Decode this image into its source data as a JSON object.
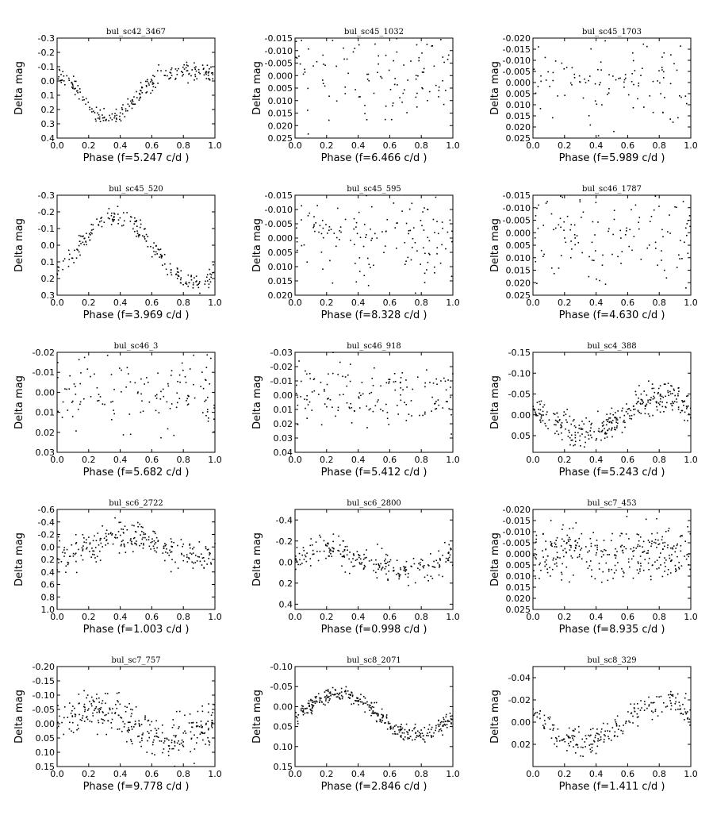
{
  "chart_data": [
    {
      "type": "scatter",
      "title": "bul_sc42_3467",
      "xlabel": "Phase (f=5.247 c/d )",
      "ylabel": "Delta mag",
      "xlim": [
        0.0,
        1.0
      ],
      "ylim_top": -0.3,
      "ylim_bottom": 0.4,
      "yticks": [
        "-0.3",
        "-0.2",
        "-0.1",
        "0.0",
        "0.1",
        "0.2",
        "0.3",
        "0.4"
      ],
      "xticks": [
        "0.0",
        "0.2",
        "0.4",
        "0.6",
        "0.8",
        "1.0"
      ],
      "shape": "dip",
      "curve": {
        "base": -0.02,
        "amp": 0.21,
        "center": 0.33,
        "width": 0.13,
        "noise": 0.03
      },
      "n_points": 220
    },
    {
      "type": "scatter",
      "title": "bul_sc45_1032",
      "xlabel": "Phase (f=6.466 c/d )",
      "ylabel": "Delta mag",
      "xlim": [
        0.0,
        1.0
      ],
      "ylim_top": -0.015,
      "ylim_bottom": 0.025,
      "yticks": [
        "-0.015",
        "-0.010",
        "-0.005",
        "0.000",
        "0.005",
        "0.010",
        "0.015",
        "0.020",
        "0.025"
      ],
      "xticks": [
        "0.0",
        "0.2",
        "0.4",
        "0.6",
        "0.8",
        "1.0"
      ],
      "shape": "flat",
      "curve": {
        "base": 0.0,
        "amp": 0.0,
        "noise": 0.008
      },
      "n_points": 110
    },
    {
      "type": "scatter",
      "title": "bul_sc45_1703",
      "xlabel": "Phase (f=5.989 c/d )",
      "ylabel": "Delta mag",
      "xlim": [
        0.0,
        1.0
      ],
      "ylim_top": -0.02,
      "ylim_bottom": 0.025,
      "yticks": [
        "-0.020",
        "-0.015",
        "-0.010",
        "-0.005",
        "0.000",
        "0.005",
        "0.010",
        "0.015",
        "0.020",
        "0.025"
      ],
      "xticks": [
        "0.0",
        "0.2",
        "0.4",
        "0.6",
        "0.8",
        "1.0"
      ],
      "shape": "flat",
      "curve": {
        "base": 0.0,
        "amp": 0.0,
        "noise": 0.01
      },
      "n_points": 110
    },
    {
      "type": "scatter",
      "title": "bul_sc45_520",
      "xlabel": "Phase (f=3.969 c/d )",
      "ylabel": "Delta mag",
      "xlim": [
        0.0,
        1.0
      ],
      "ylim_top": -0.3,
      "ylim_bottom": 0.3,
      "yticks": [
        "-0.3",
        "-0.2",
        "-0.1",
        "0.0",
        "0.1",
        "0.2",
        "0.3"
      ],
      "xticks": [
        "0.0",
        "0.2",
        "0.4",
        "0.6",
        "0.8",
        "1.0"
      ],
      "shape": "sine",
      "curve": {
        "base": 0.03,
        "amp": 0.2,
        "phase": 0.37,
        "noise": 0.03
      },
      "n_points": 200
    },
    {
      "type": "scatter",
      "title": "bul_sc45_595",
      "xlabel": "Phase (f=8.328 c/d )",
      "ylabel": "Delta mag",
      "xlim": [
        0.0,
        1.0
      ],
      "ylim_top": -0.015,
      "ylim_bottom": 0.02,
      "yticks": [
        "-0.015",
        "-0.010",
        "-0.005",
        "0.000",
        "0.005",
        "0.010",
        "0.015",
        "0.020"
      ],
      "xticks": [
        "0.0",
        "0.2",
        "0.4",
        "0.6",
        "0.8",
        "1.0"
      ],
      "shape": "flat",
      "curve": {
        "base": 0.001,
        "amp": 0.0,
        "noise": 0.008
      },
      "n_points": 140
    },
    {
      "type": "scatter",
      "title": "bul_sc46_1787",
      "xlabel": "Phase (f=4.630 c/d )",
      "ylabel": "Delta mag",
      "xlim": [
        0.0,
        1.0
      ],
      "ylim_top": -0.015,
      "ylim_bottom": 0.025,
      "yticks": [
        "-0.015",
        "-0.010",
        "-0.005",
        "0.000",
        "0.005",
        "0.010",
        "0.015",
        "0.020",
        "0.025"
      ],
      "xticks": [
        "0.0",
        "0.2",
        "0.4",
        "0.6",
        "0.8",
        "1.0"
      ],
      "shape": "flat",
      "curve": {
        "base": 0.0,
        "amp": 0.0,
        "noise": 0.009
      },
      "n_points": 130
    },
    {
      "type": "scatter",
      "title": "bul_sc46_3",
      "xlabel": "Phase (f=5.682 c/d )",
      "ylabel": "Delta mag",
      "xlim": [
        0.0,
        1.0
      ],
      "ylim_top": -0.02,
      "ylim_bottom": 0.03,
      "yticks": [
        "-0.02",
        "-0.01",
        "0.00",
        "0.01",
        "0.02",
        "0.03"
      ],
      "xticks": [
        "0.0",
        "0.2",
        "0.4",
        "0.6",
        "0.8",
        "1.0"
      ],
      "shape": "flat",
      "curve": {
        "base": 0.001,
        "amp": 0.0,
        "noise": 0.009
      },
      "n_points": 130
    },
    {
      "type": "scatter",
      "title": "bul_sc46_918",
      "xlabel": "Phase (f=5.412 c/d )",
      "ylabel": "Delta mag",
      "xlim": [
        0.0,
        1.0
      ],
      "ylim_top": -0.03,
      "ylim_bottom": 0.04,
      "yticks": [
        "-0.03",
        "-0.02",
        "-0.01",
        "0.00",
        "0.01",
        "0.02",
        "0.03",
        "0.04"
      ],
      "xticks": [
        "0.0",
        "0.2",
        "0.4",
        "0.6",
        "0.8",
        "1.0"
      ],
      "shape": "flat",
      "curve": {
        "base": 0.0,
        "amp": 0.0,
        "noise": 0.01
      },
      "n_points": 150
    },
    {
      "type": "scatter",
      "title": "bul_sc4_388",
      "xlabel": "Phase (f=5.243 c/d )",
      "ylabel": "Delta mag",
      "xlim": [
        0.0,
        1.0
      ],
      "ylim_top": -0.15,
      "ylim_bottom": 0.09,
      "yticks": [
        "-0.15",
        "-0.10",
        "-0.05",
        "0.00",
        "0.05"
      ],
      "xticks": [
        "0.0",
        "0.2",
        "0.4",
        "0.6",
        "0.8",
        "1.0"
      ],
      "shape": "sine",
      "curve": {
        "base": 0.0,
        "amp": 0.04,
        "phase": 0.82,
        "noise": 0.018
      },
      "n_points": 320
    },
    {
      "type": "scatter",
      "title": "bul_sc6_2722",
      "xlabel": "Phase (f=1.003 c/d )",
      "ylabel": "Delta mag",
      "xlim": [
        0.0,
        1.0
      ],
      "ylim_top": -0.6,
      "ylim_bottom": 1.0,
      "yticks": [
        "-0.6",
        "-0.4",
        "-0.2",
        "0.0",
        "0.2",
        "0.4",
        "0.6",
        "0.8",
        "1.0"
      ],
      "xticks": [
        "0.0",
        "0.2",
        "0.4",
        "0.6",
        "0.8",
        "1.0"
      ],
      "shape": "sine",
      "curve": {
        "base": 0.0,
        "amp": 0.15,
        "phase": 0.42,
        "noise": 0.13
      },
      "n_points": 240
    },
    {
      "type": "scatter",
      "title": "bul_sc6_2800",
      "xlabel": "Phase (f=0.998 c/d )",
      "ylabel": "Delta mag",
      "xlim": [
        0.0,
        1.0
      ],
      "ylim_top": -0.5,
      "ylim_bottom": 0.45,
      "yticks": [
        "-0.4",
        "-0.2",
        "0.0",
        "0.2",
        "0.4"
      ],
      "xticks": [
        "0.0",
        "0.2",
        "0.4",
        "0.6",
        "0.8",
        "1.0"
      ],
      "shape": "sine",
      "curve": {
        "base": 0.0,
        "amp": 0.1,
        "phase": 0.2,
        "noise": 0.07
      },
      "n_points": 230
    },
    {
      "type": "scatter",
      "title": "bul_sc7_453",
      "xlabel": "Phase (f=8.935 c/d )",
      "ylabel": "Delta mag",
      "xlim": [
        0.0,
        1.0
      ],
      "ylim_top": -0.02,
      "ylim_bottom": 0.025,
      "yticks": [
        "-0.020",
        "-0.015",
        "-0.010",
        "-0.005",
        "0.000",
        "0.005",
        "0.010",
        "0.015",
        "0.020",
        "0.025"
      ],
      "xticks": [
        "0.0",
        "0.2",
        "0.4",
        "0.6",
        "0.8",
        "1.0"
      ],
      "shape": "flat",
      "curve": {
        "base": 0.0,
        "amp": 0.0,
        "noise": 0.006
      },
      "n_points": 300
    },
    {
      "type": "scatter",
      "title": "bul_sc7_757",
      "xlabel": "Phase (f=9.778 c/d )",
      "ylabel": "Delta mag",
      "xlim": [
        0.0,
        1.0
      ],
      "ylim_top": -0.2,
      "ylim_bottom": 0.15,
      "yticks": [
        "-0.20",
        "-0.15",
        "-0.10",
        "-0.05",
        "0.00",
        "0.05",
        "0.10",
        "0.15"
      ],
      "xticks": [
        "0.0",
        "0.2",
        "0.4",
        "0.6",
        "0.8",
        "1.0"
      ],
      "shape": "sine",
      "curve": {
        "base": 0.0,
        "amp": 0.05,
        "phase": 0.22,
        "noise": 0.035
      },
      "n_points": 300
    },
    {
      "type": "scatter",
      "title": "bul_sc8_2071",
      "xlabel": "Phase (f=2.846 c/d )",
      "ylabel": "Delta mag",
      "xlim": [
        0.0,
        1.0
      ],
      "ylim_top": -0.1,
      "ylim_bottom": 0.15,
      "yticks": [
        "-0.10",
        "-0.05",
        "0.00",
        "0.05",
        "0.10",
        "0.15"
      ],
      "xticks": [
        "0.0",
        "0.2",
        "0.4",
        "0.6",
        "0.8",
        "1.0"
      ],
      "shape": "sine",
      "curve": {
        "base": 0.02,
        "amp": 0.05,
        "phase": 0.27,
        "noise": 0.01
      },
      "n_points": 320
    },
    {
      "type": "scatter",
      "title": "bul_sc8_329",
      "xlabel": "Phase (f=1.411 c/d )",
      "ylabel": "Delta mag",
      "xlim": [
        0.0,
        1.0
      ],
      "ylim_top": -0.05,
      "ylim_bottom": 0.04,
      "yticks": [
        "-0.04",
        "-0.02",
        "0.00",
        "0.02"
      ],
      "xticks": [
        "0.0",
        "0.2",
        "0.4",
        "0.6",
        "0.8",
        "1.0"
      ],
      "shape": "sine",
      "curve": {
        "base": 0.0,
        "amp": 0.018,
        "phase": 0.82,
        "noise": 0.006
      },
      "n_points": 220
    }
  ]
}
